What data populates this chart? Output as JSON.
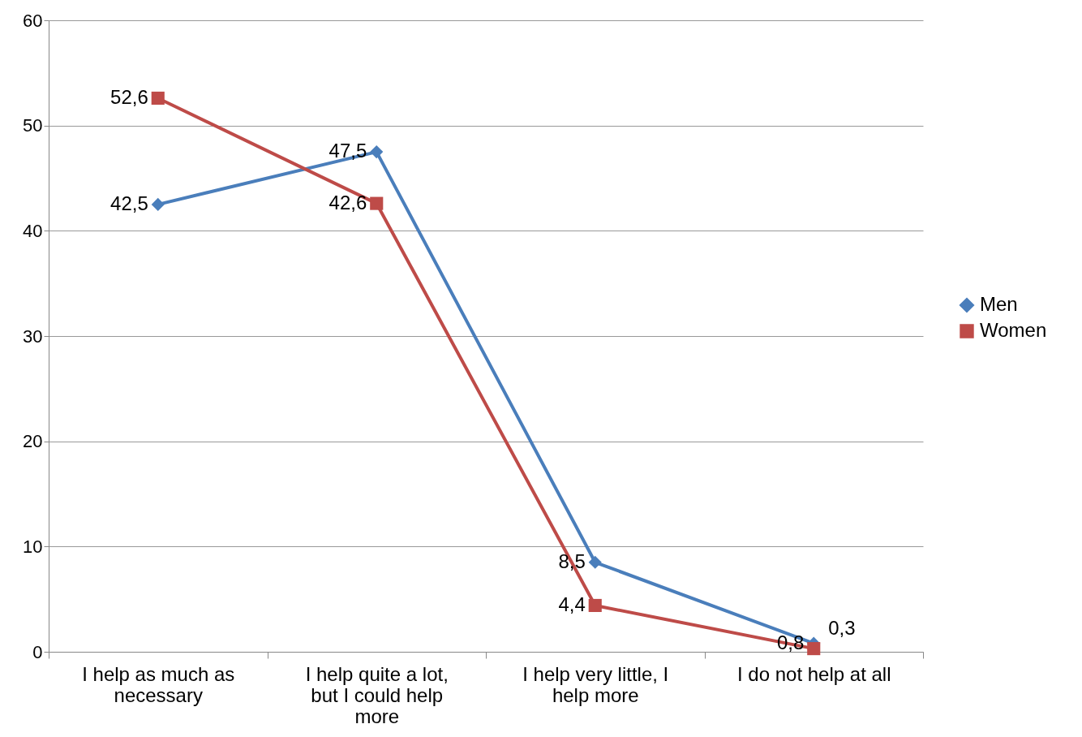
{
  "chart_data": {
    "type": "line",
    "categories": [
      "I help as much as necessary",
      "I help quite a lot, but I could help more",
      "I help very little, I help more",
      "I do not help at all"
    ],
    "series": [
      {
        "name": "Men",
        "color": "#4a7ebb",
        "marker": "diamond",
        "values": [
          42.5,
          47.5,
          8.5,
          0.8
        ],
        "value_labels": [
          "42,5",
          "47,5",
          "8,5",
          "0,8"
        ]
      },
      {
        "name": "Women",
        "color": "#be4b48",
        "marker": "square",
        "values": [
          52.6,
          42.6,
          4.4,
          0.3
        ],
        "value_labels": [
          "52,6",
          "42,6",
          "4,4",
          "0,3"
        ]
      }
    ],
    "ylim": [
      0,
      60
    ],
    "yticks": [
      0,
      10,
      20,
      30,
      40,
      50,
      60
    ],
    "grid": "y",
    "legend": "right"
  }
}
